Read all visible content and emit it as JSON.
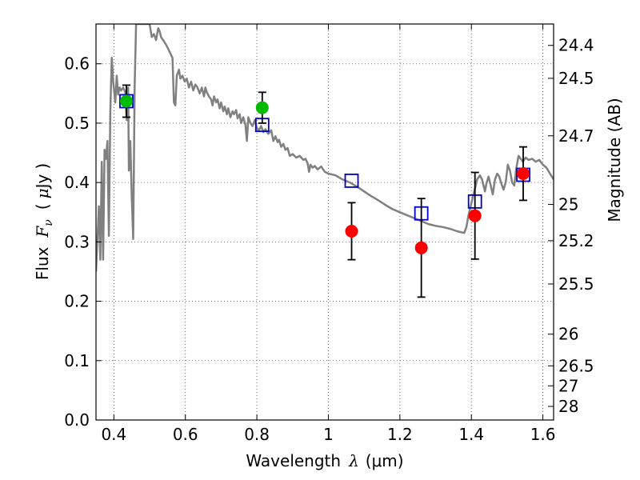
{
  "chart_data": {
    "type": "scatter",
    "title": "",
    "xlabel_main": "Wavelength",
    "xlabel_symbol": "λ",
    "xlabel_unit": "(μm)",
    "ylabel_main": "Flux",
    "ylabel_symbol_italic": "F",
    "ylabel_symbol_sub": "ν",
    "ylabel_unit_open": "(",
    "ylabel_unit_mu": "μ",
    "ylabel_unit_rest": "Jy",
    "ylabel_unit_close": ")",
    "ylabel_right": "Magnitude (AB)",
    "xlim": [
      0.35,
      1.63
    ],
    "ylim": [
      0.0,
      0.667
    ],
    "grid": true,
    "x_ticks": [
      {
        "value": 0.4,
        "label": "0.4"
      },
      {
        "value": 0.6,
        "label": "0.6"
      },
      {
        "value": 0.8,
        "label": "0.8"
      },
      {
        "value": 1.0,
        "label": "1"
      },
      {
        "value": 1.2,
        "label": "1.2"
      },
      {
        "value": 1.4,
        "label": "1.4"
      },
      {
        "value": 1.6,
        "label": "1.6"
      }
    ],
    "y_ticks": [
      {
        "value": 0.0,
        "label": "0.0"
      },
      {
        "value": 0.1,
        "label": "0.1"
      },
      {
        "value": 0.2,
        "label": "0.2"
      },
      {
        "value": 0.3,
        "label": "0.3"
      },
      {
        "value": 0.4,
        "label": "0.4"
      },
      {
        "value": 0.5,
        "label": "0.5"
      },
      {
        "value": 0.6,
        "label": "0.6"
      }
    ],
    "magnitude_ticks": [
      {
        "value": 24.4,
        "label": "24.4"
      },
      {
        "value": 24.5,
        "label": "24.5"
      },
      {
        "value": 24.7,
        "label": "24.7"
      },
      {
        "value": 25.0,
        "label": "25"
      },
      {
        "value": 25.2,
        "label": "25.2"
      },
      {
        "value": 25.5,
        "label": "25.5"
      },
      {
        "value": 26.0,
        "label": "26"
      },
      {
        "value": 26.5,
        "label": "26.5"
      },
      {
        "value": 27.0,
        "label": "27"
      },
      {
        "value": 28.0,
        "label": "28"
      }
    ],
    "colors": {
      "model": "#808080",
      "observed_red": "#ff0000",
      "observed_green": "#00bb00",
      "model_photometry": "#0000cc",
      "error_bar": "#000000",
      "grid": "#555555"
    },
    "series": [
      {
        "kind": "line",
        "color": "#808080",
        "points": [
          [
            0.35,
            0.25
          ],
          [
            0.358,
            0.36
          ],
          [
            0.362,
            0.27
          ],
          [
            0.366,
            0.435
          ],
          [
            0.37,
            0.27
          ],
          [
            0.374,
            0.455
          ],
          [
            0.378,
            0.44
          ],
          [
            0.382,
            0.47
          ],
          [
            0.386,
            0.31
          ],
          [
            0.39,
            0.52
          ],
          [
            0.394,
            0.61
          ],
          [
            0.398,
            0.57
          ],
          [
            0.404,
            0.535
          ],
          [
            0.408,
            0.58
          ],
          [
            0.412,
            0.548
          ],
          [
            0.416,
            0.56
          ],
          [
            0.42,
            0.555
          ],
          [
            0.426,
            0.56
          ],
          [
            0.432,
            0.552
          ],
          [
            0.436,
            0.505
          ],
          [
            0.44,
            0.56
          ],
          [
            0.442,
            0.42
          ],
          [
            0.446,
            0.47
          ],
          [
            0.45,
            0.375
          ],
          [
            0.454,
            0.305
          ],
          [
            0.458,
            0.56
          ],
          [
            0.462,
            0.667
          ],
          [
            0.5,
            0.667
          ],
          [
            0.506,
            0.645
          ],
          [
            0.512,
            0.65
          ],
          [
            0.518,
            0.64
          ],
          [
            0.524,
            0.66
          ],
          [
            0.528,
            0.655
          ],
          [
            0.532,
            0.645
          ],
          [
            0.54,
            0.638
          ],
          [
            0.548,
            0.63
          ],
          [
            0.556,
            0.62
          ],
          [
            0.564,
            0.61
          ],
          [
            0.568,
            0.535
          ],
          [
            0.572,
            0.53
          ],
          [
            0.576,
            0.58
          ],
          [
            0.582,
            0.59
          ],
          [
            0.586,
            0.575
          ],
          [
            0.592,
            0.58
          ],
          [
            0.598,
            0.57
          ],
          [
            0.604,
            0.575
          ],
          [
            0.61,
            0.56
          ],
          [
            0.616,
            0.57
          ],
          [
            0.622,
            0.555
          ],
          [
            0.628,
            0.565
          ],
          [
            0.634,
            0.56
          ],
          [
            0.64,
            0.55
          ],
          [
            0.646,
            0.56
          ],
          [
            0.652,
            0.545
          ],
          [
            0.656,
            0.56
          ],
          [
            0.66,
            0.552
          ],
          [
            0.666,
            0.545
          ],
          [
            0.672,
            0.54
          ],
          [
            0.676,
            0.53
          ],
          [
            0.68,
            0.545
          ],
          [
            0.686,
            0.535
          ],
          [
            0.69,
            0.54
          ],
          [
            0.696,
            0.525
          ],
          [
            0.7,
            0.535
          ],
          [
            0.706,
            0.52
          ],
          [
            0.71,
            0.528
          ],
          [
            0.716,
            0.515
          ],
          [
            0.72,
            0.525
          ],
          [
            0.726,
            0.51
          ],
          [
            0.732,
            0.52
          ],
          [
            0.736,
            0.515
          ],
          [
            0.742,
            0.522
          ],
          [
            0.746,
            0.508
          ],
          [
            0.752,
            0.515
          ],
          [
            0.756,
            0.5
          ],
          [
            0.762,
            0.51
          ],
          [
            0.768,
            0.497
          ],
          [
            0.772,
            0.47
          ],
          [
            0.776,
            0.51
          ],
          [
            0.782,
            0.5
          ],
          [
            0.788,
            0.495
          ],
          [
            0.794,
            0.505
          ],
          [
            0.8,
            0.492
          ],
          [
            0.806,
            0.488
          ],
          [
            0.812,
            0.495
          ],
          [
            0.818,
            0.485
          ],
          [
            0.824,
            0.49
          ],
          [
            0.832,
            0.482
          ],
          [
            0.84,
            0.488
          ],
          [
            0.846,
            0.47
          ],
          [
            0.852,
            0.478
          ],
          [
            0.858,
            0.468
          ],
          [
            0.862,
            0.472
          ],
          [
            0.868,
            0.46
          ],
          [
            0.874,
            0.465
          ],
          [
            0.88,
            0.455
          ],
          [
            0.886,
            0.458
          ],
          [
            0.892,
            0.445
          ],
          [
            0.9,
            0.448
          ],
          [
            0.91,
            0.442
          ],
          [
            0.92,
            0.445
          ],
          [
            0.93,
            0.438
          ],
          [
            0.936,
            0.44
          ],
          [
            0.942,
            0.432
          ],
          [
            0.946,
            0.418
          ],
          [
            0.95,
            0.43
          ],
          [
            0.956,
            0.425
          ],
          [
            0.962,
            0.428
          ],
          [
            0.97,
            0.422
          ],
          [
            0.98,
            0.427
          ],
          [
            0.99,
            0.418
          ],
          [
            1.0,
            0.415
          ],
          [
            1.02,
            0.412
          ],
          [
            1.04,
            0.405
          ],
          [
            1.06,
            0.4
          ],
          [
            1.08,
            0.393
          ],
          [
            1.1,
            0.385
          ],
          [
            1.12,
            0.377
          ],
          [
            1.14,
            0.37
          ],
          [
            1.16,
            0.362
          ],
          [
            1.18,
            0.355
          ],
          [
            1.2,
            0.35
          ],
          [
            1.22,
            0.345
          ],
          [
            1.24,
            0.34
          ],
          [
            1.26,
            0.335
          ],
          [
            1.28,
            0.33
          ],
          [
            1.3,
            0.327
          ],
          [
            1.32,
            0.325
          ],
          [
            1.34,
            0.322
          ],
          [
            1.36,
            0.318
          ],
          [
            1.38,
            0.315
          ],
          [
            1.386,
            0.325
          ],
          [
            1.392,
            0.345
          ],
          [
            1.398,
            0.36
          ],
          [
            1.404,
            0.375
          ],
          [
            1.41,
            0.39
          ],
          [
            1.416,
            0.405
          ],
          [
            1.424,
            0.412
          ],
          [
            1.43,
            0.405
          ],
          [
            1.434,
            0.395
          ],
          [
            1.438,
            0.385
          ],
          [
            1.442,
            0.398
          ],
          [
            1.448,
            0.41
          ],
          [
            1.454,
            0.395
          ],
          [
            1.46,
            0.38
          ],
          [
            1.466,
            0.405
          ],
          [
            1.472,
            0.415
          ],
          [
            1.478,
            0.41
          ],
          [
            1.484,
            0.398
          ],
          [
            1.49,
            0.388
          ],
          [
            1.496,
            0.4
          ],
          [
            1.502,
            0.43
          ],
          [
            1.508,
            0.42
          ],
          [
            1.514,
            0.4
          ],
          [
            1.52,
            0.395
          ],
          [
            1.526,
            0.425
          ],
          [
            1.532,
            0.445
          ],
          [
            1.538,
            0.44
          ],
          [
            1.544,
            0.435
          ],
          [
            1.552,
            0.442
          ],
          [
            1.56,
            0.438
          ],
          [
            1.57,
            0.44
          ],
          [
            1.58,
            0.435
          ],
          [
            1.59,
            0.438
          ],
          [
            1.6,
            0.43
          ],
          [
            1.61,
            0.425
          ],
          [
            1.62,
            0.415
          ],
          [
            1.63,
            0.405
          ]
        ]
      },
      {
        "kind": "scatter",
        "marker": "open-square",
        "color": "#0000cc",
        "points": [
          [
            0.435,
            0.537
          ],
          [
            0.815,
            0.497
          ],
          [
            1.065,
            0.403
          ],
          [
            1.26,
            0.348
          ],
          [
            1.41,
            0.368
          ],
          [
            1.545,
            0.413
          ]
        ]
      },
      {
        "kind": "scatter",
        "marker": "filled-circle",
        "color": "#00bb00",
        "points": [
          {
            "x": 0.435,
            "y": 0.537,
            "err": 0.027
          },
          {
            "x": 0.815,
            "y": 0.526,
            "err": 0.026
          }
        ]
      },
      {
        "kind": "scatter",
        "marker": "filled-circle",
        "color": "#ff0000",
        "points": [
          {
            "x": 1.065,
            "y": 0.318,
            "err": 0.048
          },
          {
            "x": 1.26,
            "y": 0.29,
            "err": 0.083
          },
          {
            "x": 1.41,
            "y": 0.344,
            "err": 0.073
          },
          {
            "x": 1.545,
            "y": 0.415,
            "err": 0.045
          }
        ]
      }
    ]
  }
}
